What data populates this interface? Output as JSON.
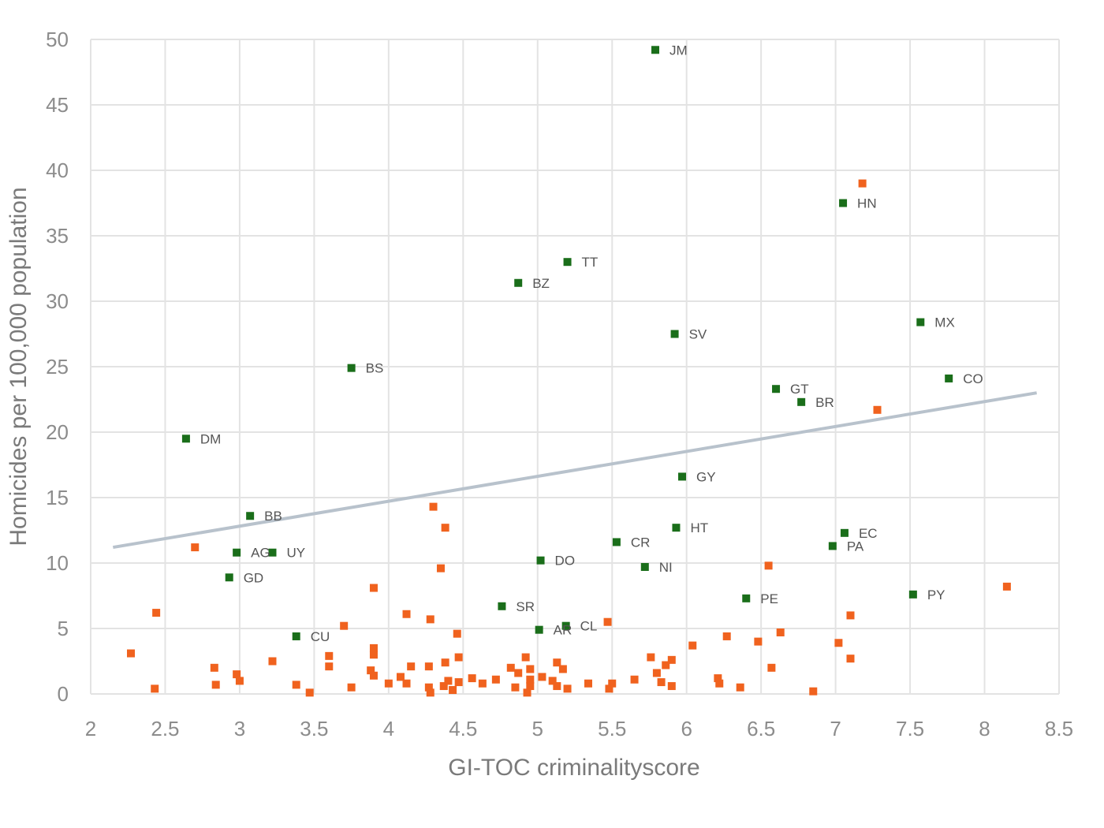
{
  "chart_data": {
    "type": "scatter",
    "title": "",
    "xlabel": "GI-TOC criminalityscore",
    "ylabel": "Homicides per 100,000 population",
    "xlim": [
      2,
      8.5
    ],
    "ylim": [
      0,
      50
    ],
    "x_ticks": [
      "2",
      "2.5",
      "3",
      "3.5",
      "4",
      "4.5",
      "5",
      "5.5",
      "6",
      "6.5",
      "7",
      "7.5",
      "8",
      "8.5"
    ],
    "y_ticks": [
      "0",
      "5",
      "10",
      "15",
      "20",
      "25",
      "30",
      "35",
      "40",
      "45",
      "50"
    ],
    "grid": true,
    "legend": "none",
    "trendline": {
      "x": [
        2.15,
        8.35
      ],
      "y": [
        11.2,
        23.0
      ],
      "color": "#b8c2cc"
    },
    "series": [
      {
        "color": "#1a6e1a",
        "points": [
          {
            "x": 5.79,
            "y": 49.2,
            "label": "JM"
          },
          {
            "x": 7.05,
            "y": 37.5,
            "label": "HN"
          },
          {
            "x": 5.2,
            "y": 33.0,
            "label": "TT"
          },
          {
            "x": 4.87,
            "y": 31.4,
            "label": "BZ"
          },
          {
            "x": 7.57,
            "y": 28.4,
            "label": "MX"
          },
          {
            "x": 5.92,
            "y": 27.5,
            "label": "SV"
          },
          {
            "x": 3.75,
            "y": 24.9,
            "label": "BS"
          },
          {
            "x": 7.76,
            "y": 24.1,
            "label": "CO"
          },
          {
            "x": 6.6,
            "y": 23.3,
            "label": "GT"
          },
          {
            "x": 6.77,
            "y": 22.3,
            "label": "BR"
          },
          {
            "x": 2.64,
            "y": 19.5,
            "label": "DM"
          },
          {
            "x": 5.97,
            "y": 16.6,
            "label": "GY"
          },
          {
            "x": 3.07,
            "y": 13.6,
            "label": "BB"
          },
          {
            "x": 5.93,
            "y": 12.7,
            "label": "HT"
          },
          {
            "x": 7.06,
            "y": 12.3,
            "label": "EC"
          },
          {
            "x": 5.53,
            "y": 11.6,
            "label": "CR"
          },
          {
            "x": 6.98,
            "y": 11.3,
            "label": "PA"
          },
          {
            "x": 2.98,
            "y": 10.8,
            "label": "AG"
          },
          {
            "x": 3.22,
            "y": 10.8,
            "label": "UY"
          },
          {
            "x": 5.02,
            "y": 10.2,
            "label": "DO"
          },
          {
            "x": 5.72,
            "y": 9.7,
            "label": "NI"
          },
          {
            "x": 2.93,
            "y": 8.9,
            "label": "GD"
          },
          {
            "x": 7.52,
            "y": 7.6,
            "label": "PY"
          },
          {
            "x": 6.4,
            "y": 7.3,
            "label": "PE"
          },
          {
            "x": 4.76,
            "y": 6.7,
            "label": "SR"
          },
          {
            "x": 5.19,
            "y": 5.2,
            "label": "CL"
          },
          {
            "x": 5.01,
            "y": 4.9,
            "label": "AR"
          },
          {
            "x": 3.38,
            "y": 4.4,
            "label": "CU"
          }
        ]
      },
      {
        "color": "#f0621e",
        "points": [
          {
            "x": 7.18,
            "y": 39.0
          },
          {
            "x": 7.28,
            "y": 21.7
          },
          {
            "x": 4.3,
            "y": 14.3
          },
          {
            "x": 4.38,
            "y": 12.7
          },
          {
            "x": 2.7,
            "y": 11.2
          },
          {
            "x": 6.55,
            "y": 9.8
          },
          {
            "x": 4.35,
            "y": 9.6
          },
          {
            "x": 8.15,
            "y": 8.2
          },
          {
            "x": 3.9,
            "y": 8.1
          },
          {
            "x": 2.44,
            "y": 6.2
          },
          {
            "x": 4.12,
            "y": 6.1
          },
          {
            "x": 7.1,
            "y": 6.0
          },
          {
            "x": 4.28,
            "y": 5.7
          },
          {
            "x": 5.47,
            "y": 5.5
          },
          {
            "x": 3.7,
            "y": 5.2
          },
          {
            "x": 4.46,
            "y": 4.6
          },
          {
            "x": 6.63,
            "y": 4.7
          },
          {
            "x": 6.27,
            "y": 4.4
          },
          {
            "x": 6.48,
            "y": 4.0
          },
          {
            "x": 7.02,
            "y": 3.9
          },
          {
            "x": 6.04,
            "y": 3.7
          },
          {
            "x": 3.9,
            "y": 3.5
          },
          {
            "x": 2.27,
            "y": 3.1
          },
          {
            "x": 3.9,
            "y": 3.0
          },
          {
            "x": 3.6,
            "y": 2.9
          },
          {
            "x": 4.47,
            "y": 2.8
          },
          {
            "x": 4.92,
            "y": 2.8
          },
          {
            "x": 5.76,
            "y": 2.8
          },
          {
            "x": 7.1,
            "y": 2.7
          },
          {
            "x": 5.9,
            "y": 2.6
          },
          {
            "x": 3.22,
            "y": 2.5
          },
          {
            "x": 4.38,
            "y": 2.4
          },
          {
            "x": 5.13,
            "y": 2.4
          },
          {
            "x": 5.86,
            "y": 2.2
          },
          {
            "x": 3.6,
            "y": 2.1
          },
          {
            "x": 4.15,
            "y": 2.1
          },
          {
            "x": 4.27,
            "y": 2.1
          },
          {
            "x": 4.82,
            "y": 2.0
          },
          {
            "x": 6.57,
            "y": 2.0
          },
          {
            "x": 2.83,
            "y": 2.0
          },
          {
            "x": 5.17,
            "y": 1.9
          },
          {
            "x": 4.95,
            "y": 1.9
          },
          {
            "x": 3.88,
            "y": 1.8
          },
          {
            "x": 4.87,
            "y": 1.6
          },
          {
            "x": 5.8,
            "y": 1.6
          },
          {
            "x": 2.98,
            "y": 1.5
          },
          {
            "x": 3.9,
            "y": 1.4
          },
          {
            "x": 4.08,
            "y": 1.3
          },
          {
            "x": 5.03,
            "y": 1.3
          },
          {
            "x": 4.56,
            "y": 1.2
          },
          {
            "x": 6.21,
            "y": 1.2
          },
          {
            "x": 5.65,
            "y": 1.1
          },
          {
            "x": 4.95,
            "y": 1.1
          },
          {
            "x": 4.72,
            "y": 1.1
          },
          {
            "x": 4.4,
            "y": 1.0
          },
          {
            "x": 5.1,
            "y": 1.0
          },
          {
            "x": 3.0,
            "y": 1.0
          },
          {
            "x": 4.47,
            "y": 0.9
          },
          {
            "x": 5.83,
            "y": 0.9
          },
          {
            "x": 4.0,
            "y": 0.8
          },
          {
            "x": 4.63,
            "y": 0.8
          },
          {
            "x": 5.34,
            "y": 0.8
          },
          {
            "x": 4.12,
            "y": 0.8
          },
          {
            "x": 5.5,
            "y": 0.8
          },
          {
            "x": 6.22,
            "y": 0.8
          },
          {
            "x": 3.38,
            "y": 0.7
          },
          {
            "x": 2.84,
            "y": 0.7
          },
          {
            "x": 4.37,
            "y": 0.6
          },
          {
            "x": 4.95,
            "y": 0.6
          },
          {
            "x": 5.13,
            "y": 0.6
          },
          {
            "x": 5.9,
            "y": 0.6
          },
          {
            "x": 3.75,
            "y": 0.5
          },
          {
            "x": 4.27,
            "y": 0.5
          },
          {
            "x": 4.85,
            "y": 0.5
          },
          {
            "x": 6.36,
            "y": 0.5
          },
          {
            "x": 5.48,
            "y": 0.4
          },
          {
            "x": 5.2,
            "y": 0.4
          },
          {
            "x": 2.43,
            "y": 0.4
          },
          {
            "x": 4.43,
            "y": 0.3
          },
          {
            "x": 6.85,
            "y": 0.2
          },
          {
            "x": 3.47,
            "y": 0.1
          },
          {
            "x": 4.28,
            "y": 0.1
          },
          {
            "x": 4.93,
            "y": 0.1
          }
        ]
      }
    ]
  }
}
